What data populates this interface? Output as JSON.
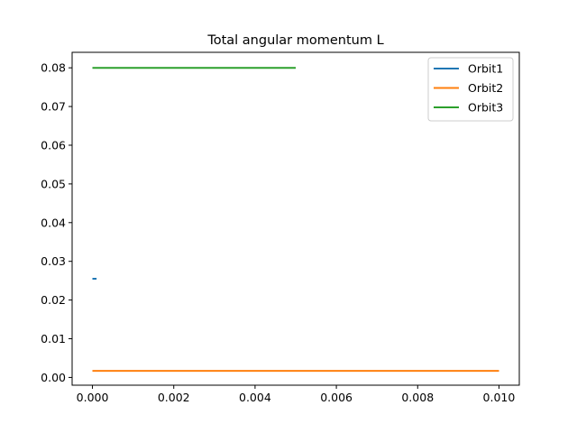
{
  "chart_data": {
    "type": "line",
    "title": "Total angular momentum L",
    "xlabel": "",
    "ylabel": "",
    "xlim": [
      -0.0005,
      0.0105
    ],
    "ylim": [
      -0.002,
      0.084
    ],
    "x_ticks": [
      0.0,
      0.002,
      0.004,
      0.006,
      0.008,
      0.01
    ],
    "x_tick_labels": [
      "0.000",
      "0.002",
      "0.004",
      "0.006",
      "0.008",
      "0.010"
    ],
    "y_ticks": [
      0.0,
      0.01,
      0.02,
      0.03,
      0.04,
      0.05,
      0.06,
      0.07,
      0.08
    ],
    "y_tick_labels": [
      "0.00",
      "0.01",
      "0.02",
      "0.03",
      "0.04",
      "0.05",
      "0.06",
      "0.07",
      "0.08"
    ],
    "grid": false,
    "legend_position": "upper right",
    "series": [
      {
        "name": "Orbit1",
        "color": "#1f77b4",
        "x": [
          0.0,
          0.0001
        ],
        "y": [
          0.0255,
          0.0255
        ]
      },
      {
        "name": "Orbit2",
        "color": "#ff7f0e",
        "x": [
          0.0,
          0.01
        ],
        "y": [
          0.0017,
          0.0017
        ]
      },
      {
        "name": "Orbit3",
        "color": "#2ca02c",
        "x": [
          0.0,
          0.005
        ],
        "y": [
          0.08,
          0.08
        ]
      }
    ]
  }
}
